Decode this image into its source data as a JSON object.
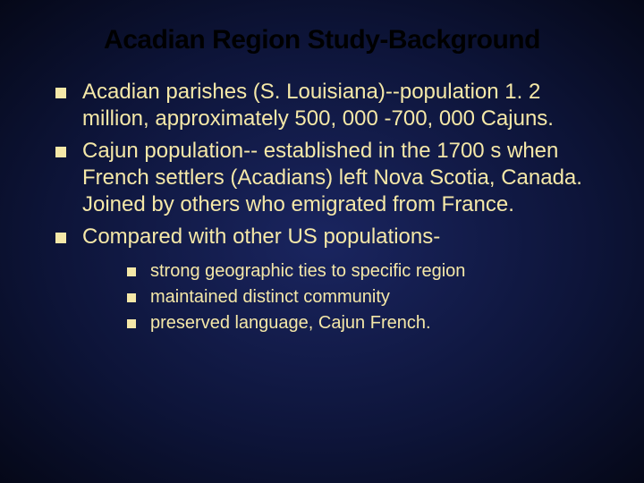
{
  "slide": {
    "title": "Acadian Region Study-Background",
    "background_gradient_center": "#1a2560",
    "background_gradient_edge": "#050818",
    "title_color": "#000000",
    "title_fontsize": 30,
    "body_color": "#f5e8a8",
    "body_fontsize_l1": 24,
    "body_fontsize_l2": 20,
    "bullet_shape": "square",
    "bullet_color": "#f5e8a8",
    "bullets": [
      {
        "text": "Acadian parishes (S. Louisiana)--population 1. 2 million, approximately 500, 000 -700, 000 Cajuns."
      },
      {
        "text": "Cajun population-- established in the 1700 s when French settlers (Acadians) left Nova Scotia, Canada. Joined by others who emigrated from France."
      },
      {
        "text": "Compared with other US populations-",
        "sub": [
          "strong geographic ties to specific region",
          "maintained distinct community",
          "preserved language, Cajun French."
        ]
      }
    ]
  }
}
